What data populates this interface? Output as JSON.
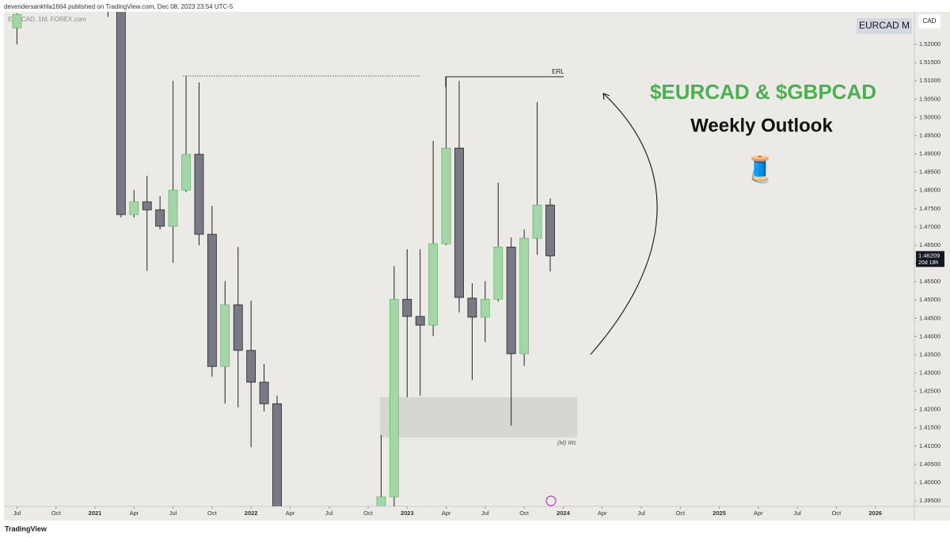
{
  "header": {
    "text": "devendersankhla1664 published on TradingView.com, Dec 08, 2023 23:54 UTC-5"
  },
  "badge": "EURCAD M",
  "annotations": {
    "erl": "ERL",
    "irl": "(M) IRL"
  },
  "footer": "TradingView",
  "chart_data": {
    "type": "candlestick",
    "title": "$EURCAD & $GBPCAD",
    "subtitle": "Weekly Outlook",
    "emoji": "🧵",
    "symbol": "EURCAD, 1M, FOREX.com",
    "currency": "CAD",
    "up_color": "#a5d6a7",
    "down_color": "#787b86",
    "x": [
      "2020-07",
      "2021-02",
      "2021-03",
      "2021-04",
      "2021-05",
      "2021-06",
      "2021-07",
      "2021-08",
      "2021-09",
      "2021-10",
      "2021-11",
      "2021-12",
      "2022-01",
      "2022-02",
      "2022-03",
      "2022-11",
      "2022-12",
      "2023-01",
      "2023-02",
      "2023-03",
      "2023-04",
      "2023-05",
      "2023-06",
      "2023-07",
      "2023-08",
      "2023-09",
      "2023-10",
      "2023-11",
      "2023-12"
    ],
    "open": [
      1.5245,
      1.545,
      1.535,
      1.4734,
      1.4769,
      1.4747,
      1.4702,
      1.4801,
      1.4899,
      1.468,
      1.4318,
      1.4487,
      1.4362,
      1.4275,
      1.4216,
      1.388,
      1.3961,
      1.4502,
      1.4455,
      1.4431,
      1.4654,
      1.4916,
      1.4505,
      1.4453,
      1.4502,
      1.4645,
      1.4353,
      1.4669,
      1.476
    ],
    "high": [
      1.5285,
      1.548,
      1.537,
      1.4801,
      1.484,
      1.4784,
      1.51,
      1.5113,
      1.5096,
      1.4758,
      1.4552,
      1.4645,
      1.4498,
      1.4325,
      1.4238,
      1.413,
      1.4593,
      1.4639,
      1.4639,
      1.4936,
      1.5111,
      1.51,
      1.4546,
      1.4552,
      1.4821,
      1.4671,
      1.4693,
      1.5042,
      1.4778
    ],
    "low": [
      1.52,
      1.5275,
      1.4726,
      1.4726,
      1.458,
      1.4693,
      1.4602,
      1.4795,
      1.465,
      1.429,
      1.4216,
      1.4206,
      1.4097,
      1.4195,
      1.388,
      1.385,
      1.3935,
      1.4234,
      1.4238,
      1.4401,
      1.465,
      1.4466,
      1.4281,
      1.4385,
      1.4496,
      1.4156,
      1.432,
      1.4624,
      1.4578
    ],
    "close": [
      1.5282,
      1.535,
      1.4734,
      1.4769,
      1.4747,
      1.4702,
      1.4801,
      1.4899,
      1.468,
      1.4318,
      1.4487,
      1.4362,
      1.4275,
      1.4216,
      1.39,
      1.3961,
      1.4502,
      1.4455,
      1.4431,
      1.4654,
      1.4916,
      1.4507,
      1.4453,
      1.4502,
      1.4645,
      1.4353,
      1.4669,
      1.476,
      1.4621
    ],
    "last_price": 1.46209,
    "countdown": "20d 18h",
    "xlim": [
      "2020-06",
      "2026-04"
    ],
    "xticks": [
      {
        "value": "2020-07",
        "label": "Jul"
      },
      {
        "value": "2020-10",
        "label": "Oct"
      },
      {
        "value": "2021-01",
        "label": "2021"
      },
      {
        "value": "2021-04",
        "label": "Apr"
      },
      {
        "value": "2021-07",
        "label": "Jul"
      },
      {
        "value": "2021-10",
        "label": "Oct"
      },
      {
        "value": "2022-01",
        "label": "2022"
      },
      {
        "value": "2022-04",
        "label": "Apr"
      },
      {
        "value": "2022-07",
        "label": "Jul"
      },
      {
        "value": "2022-10",
        "label": "Oct"
      },
      {
        "value": "2023-01",
        "label": "2023"
      },
      {
        "value": "2023-04",
        "label": "Apr"
      },
      {
        "value": "2023-07",
        "label": "Jul"
      },
      {
        "value": "2023-10",
        "label": "Oct"
      },
      {
        "value": "2024-01",
        "label": "2024"
      },
      {
        "value": "2024-04",
        "label": "Apr"
      },
      {
        "value": "2024-07",
        "label": "Jul"
      },
      {
        "value": "2024-10",
        "label": "Oct"
      },
      {
        "value": "2025-01",
        "label": "2025"
      },
      {
        "value": "2025-04",
        "label": "Apr"
      },
      {
        "value": "2025-07",
        "label": "Jul"
      },
      {
        "value": "2025-10",
        "label": "Oct"
      },
      {
        "value": "2026-01",
        "label": "2026"
      }
    ],
    "ylim": [
      1.3935,
      1.5289
    ],
    "yticks": [
      {
        "value": 1.395,
        "label": "1.39500"
      },
      {
        "value": 1.4,
        "label": "1.40000"
      },
      {
        "value": 1.405,
        "label": "1.40500"
      },
      {
        "value": 1.41,
        "label": "1.41000"
      },
      {
        "value": 1.415,
        "label": "1.41500"
      },
      {
        "value": 1.42,
        "label": "1.42000"
      },
      {
        "value": 1.425,
        "label": "1.42500"
      },
      {
        "value": 1.43,
        "label": "1.43000"
      },
      {
        "value": 1.435,
        "label": "1.43500"
      },
      {
        "value": 1.44,
        "label": "1.44000"
      },
      {
        "value": 1.445,
        "label": "1.44500"
      },
      {
        "value": 1.45,
        "label": "1.45000"
      },
      {
        "value": 1.455,
        "label": "1.45500"
      },
      {
        "value": 1.46,
        "label": "1.46000"
      },
      {
        "value": 1.465,
        "label": "1.46500"
      },
      {
        "value": 1.47,
        "label": "1.47000"
      },
      {
        "value": 1.475,
        "label": "1.47500"
      },
      {
        "value": 1.48,
        "label": "1.48000"
      },
      {
        "value": 1.485,
        "label": "1.48500"
      },
      {
        "value": 1.49,
        "label": "1.49000"
      },
      {
        "value": 1.495,
        "label": "1.49500"
      },
      {
        "value": 1.5,
        "label": "1.50000"
      },
      {
        "value": 1.505,
        "label": "1.50500"
      },
      {
        "value": 1.51,
        "label": "1.51000"
      },
      {
        "value": 1.515,
        "label": "1.51500"
      },
      {
        "value": 1.52,
        "label": "1.52000"
      }
    ]
  }
}
